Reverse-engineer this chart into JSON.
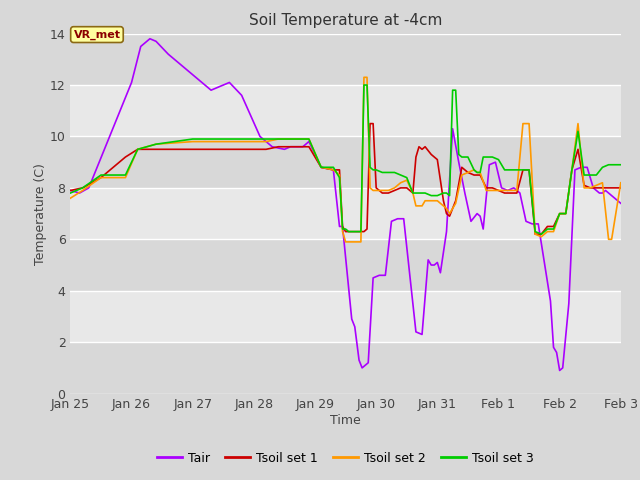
{
  "title": "Soil Temperature at -4cm",
  "xlabel": "Time",
  "ylabel": "Temperature (C)",
  "ylim": [
    0,
    14
  ],
  "yticks": [
    0,
    2,
    4,
    6,
    8,
    10,
    12,
    14
  ],
  "background_color": "#e8e8e8",
  "plot_bg_color": "#e0e0e0",
  "grid_color": "#f5f5f5",
  "annotation_label": "VR_met",
  "annotation_box_color": "#ffffa0",
  "annotation_border_color": "#8b6914",
  "series_order": [
    "Tair",
    "Tsoil set 1",
    "Tsoil set 2",
    "Tsoil set 3"
  ],
  "series": {
    "Tair": {
      "color": "#aa00ff",
      "linewidth": 1.2,
      "points": [
        [
          0.0,
          7.9
        ],
        [
          0.15,
          7.8
        ],
        [
          0.3,
          8.0
        ],
        [
          1.0,
          12.1
        ],
        [
          1.15,
          13.5
        ],
        [
          1.3,
          13.8
        ],
        [
          1.4,
          13.7
        ],
        [
          1.6,
          13.2
        ],
        [
          1.8,
          12.8
        ],
        [
          2.1,
          12.2
        ],
        [
          2.3,
          11.8
        ],
        [
          2.6,
          12.1
        ],
        [
          2.8,
          11.6
        ],
        [
          3.1,
          10.0
        ],
        [
          3.3,
          9.6
        ],
        [
          3.5,
          9.5
        ],
        [
          3.6,
          9.6
        ],
        [
          3.8,
          9.6
        ],
        [
          3.9,
          9.8
        ],
        [
          4.1,
          8.8
        ],
        [
          4.3,
          8.7
        ],
        [
          4.4,
          6.5
        ],
        [
          4.45,
          6.5
        ],
        [
          4.6,
          2.9
        ],
        [
          4.65,
          2.6
        ],
        [
          4.72,
          1.3
        ],
        [
          4.77,
          1.0
        ],
        [
          4.82,
          1.1
        ],
        [
          4.87,
          1.2
        ],
        [
          4.95,
          4.5
        ],
        [
          5.05,
          4.6
        ],
        [
          5.15,
          4.6
        ],
        [
          5.25,
          6.7
        ],
        [
          5.35,
          6.8
        ],
        [
          5.45,
          6.8
        ],
        [
          5.55,
          4.6
        ],
        [
          5.65,
          2.4
        ],
        [
          5.75,
          2.3
        ],
        [
          5.85,
          5.2
        ],
        [
          5.9,
          5.0
        ],
        [
          5.95,
          5.0
        ],
        [
          6.0,
          5.1
        ],
        [
          6.05,
          4.7
        ],
        [
          6.15,
          6.3
        ],
        [
          6.25,
          10.3
        ],
        [
          6.35,
          9.0
        ],
        [
          6.45,
          7.8
        ],
        [
          6.55,
          6.7
        ],
        [
          6.65,
          7.0
        ],
        [
          6.7,
          6.9
        ],
        [
          6.75,
          6.4
        ],
        [
          6.85,
          8.9
        ],
        [
          6.95,
          9.0
        ],
        [
          7.05,
          8.0
        ],
        [
          7.15,
          7.9
        ],
        [
          7.25,
          8.0
        ],
        [
          7.35,
          7.8
        ],
        [
          7.45,
          6.7
        ],
        [
          7.55,
          6.6
        ],
        [
          7.65,
          6.6
        ],
        [
          7.85,
          3.6
        ],
        [
          7.9,
          1.8
        ],
        [
          7.95,
          1.6
        ],
        [
          8.0,
          0.9
        ],
        [
          8.05,
          1.0
        ],
        [
          8.15,
          3.5
        ],
        [
          8.25,
          8.7
        ],
        [
          8.35,
          8.8
        ],
        [
          8.45,
          8.8
        ],
        [
          8.55,
          8.0
        ],
        [
          8.65,
          7.8
        ],
        [
          8.7,
          7.8
        ],
        [
          8.75,
          7.9
        ],
        [
          9.0,
          7.4
        ]
      ]
    },
    "Tsoil set 1": {
      "color": "#cc0000",
      "linewidth": 1.2,
      "points": [
        [
          0.0,
          7.9
        ],
        [
          0.2,
          8.0
        ],
        [
          0.5,
          8.4
        ],
        [
          0.9,
          9.2
        ],
        [
          1.1,
          9.5
        ],
        [
          1.4,
          9.5
        ],
        [
          2.0,
          9.5
        ],
        [
          2.5,
          9.5
        ],
        [
          3.0,
          9.5
        ],
        [
          3.2,
          9.5
        ],
        [
          3.4,
          9.6
        ],
        [
          3.6,
          9.6
        ],
        [
          3.8,
          9.6
        ],
        [
          3.9,
          9.6
        ],
        [
          4.1,
          8.8
        ],
        [
          4.3,
          8.7
        ],
        [
          4.4,
          8.7
        ],
        [
          4.45,
          6.5
        ],
        [
          4.5,
          6.3
        ],
        [
          4.55,
          6.3
        ],
        [
          4.6,
          6.3
        ],
        [
          4.7,
          6.3
        ],
        [
          4.75,
          6.3
        ],
        [
          4.8,
          6.3
        ],
        [
          4.85,
          6.4
        ],
        [
          4.9,
          10.5
        ],
        [
          4.95,
          10.5
        ],
        [
          5.0,
          8.0
        ],
        [
          5.1,
          7.8
        ],
        [
          5.2,
          7.8
        ],
        [
          5.3,
          7.9
        ],
        [
          5.4,
          8.0
        ],
        [
          5.5,
          8.0
        ],
        [
          5.6,
          7.8
        ],
        [
          5.65,
          9.2
        ],
        [
          5.7,
          9.6
        ],
        [
          5.75,
          9.5
        ],
        [
          5.8,
          9.6
        ],
        [
          5.9,
          9.3
        ],
        [
          6.0,
          9.1
        ],
        [
          6.1,
          7.5
        ],
        [
          6.15,
          7.0
        ],
        [
          6.2,
          6.9
        ],
        [
          6.25,
          7.2
        ],
        [
          6.3,
          7.5
        ],
        [
          6.4,
          8.8
        ],
        [
          6.5,
          8.6
        ],
        [
          6.6,
          8.5
        ],
        [
          6.65,
          8.5
        ],
        [
          6.7,
          8.5
        ],
        [
          6.8,
          8.0
        ],
        [
          6.9,
          8.0
        ],
        [
          7.0,
          7.9
        ],
        [
          7.1,
          7.8
        ],
        [
          7.2,
          7.8
        ],
        [
          7.3,
          7.8
        ],
        [
          7.4,
          8.7
        ],
        [
          7.5,
          8.7
        ],
        [
          7.6,
          6.2
        ],
        [
          7.7,
          6.2
        ],
        [
          7.8,
          6.5
        ],
        [
          7.9,
          6.5
        ],
        [
          8.0,
          7.0
        ],
        [
          8.1,
          7.0
        ],
        [
          8.2,
          8.7
        ],
        [
          8.3,
          9.5
        ],
        [
          8.4,
          8.1
        ],
        [
          8.5,
          8.0
        ],
        [
          8.6,
          8.0
        ],
        [
          8.7,
          8.0
        ],
        [
          8.8,
          8.0
        ],
        [
          9.0,
          8.0
        ]
      ]
    },
    "Tsoil set 2": {
      "color": "#ff9900",
      "linewidth": 1.2,
      "points": [
        [
          0.0,
          7.6
        ],
        [
          0.2,
          7.9
        ],
        [
          0.5,
          8.4
        ],
        [
          0.9,
          8.4
        ],
        [
          1.1,
          9.5
        ],
        [
          1.4,
          9.7
        ],
        [
          2.0,
          9.8
        ],
        [
          2.5,
          9.8
        ],
        [
          3.0,
          9.8
        ],
        [
          3.2,
          9.8
        ],
        [
          3.4,
          9.9
        ],
        [
          3.6,
          9.9
        ],
        [
          3.8,
          9.9
        ],
        [
          3.9,
          9.9
        ],
        [
          4.1,
          8.8
        ],
        [
          4.3,
          8.7
        ],
        [
          4.4,
          8.5
        ],
        [
          4.45,
          6.3
        ],
        [
          4.5,
          5.9
        ],
        [
          4.55,
          5.9
        ],
        [
          4.6,
          5.9
        ],
        [
          4.7,
          5.9
        ],
        [
          4.75,
          5.9
        ],
        [
          4.8,
          12.3
        ],
        [
          4.85,
          12.3
        ],
        [
          4.9,
          8.0
        ],
        [
          4.95,
          7.9
        ],
        [
          5.0,
          7.9
        ],
        [
          5.1,
          7.9
        ],
        [
          5.2,
          7.9
        ],
        [
          5.3,
          8.0
        ],
        [
          5.4,
          8.2
        ],
        [
          5.5,
          8.3
        ],
        [
          5.6,
          7.8
        ],
        [
          5.65,
          7.3
        ],
        [
          5.7,
          7.3
        ],
        [
          5.75,
          7.3
        ],
        [
          5.8,
          7.5
        ],
        [
          5.9,
          7.5
        ],
        [
          6.0,
          7.5
        ],
        [
          6.1,
          7.3
        ],
        [
          6.15,
          7.2
        ],
        [
          6.2,
          7.0
        ],
        [
          6.25,
          7.2
        ],
        [
          6.3,
          7.4
        ],
        [
          6.4,
          8.5
        ],
        [
          6.5,
          8.6
        ],
        [
          6.6,
          8.7
        ],
        [
          6.65,
          8.6
        ],
        [
          6.7,
          8.6
        ],
        [
          6.8,
          7.9
        ],
        [
          6.9,
          7.9
        ],
        [
          7.0,
          7.9
        ],
        [
          7.1,
          7.9
        ],
        [
          7.2,
          7.9
        ],
        [
          7.3,
          7.9
        ],
        [
          7.4,
          10.5
        ],
        [
          7.5,
          10.5
        ],
        [
          7.6,
          6.2
        ],
        [
          7.7,
          6.1
        ],
        [
          7.8,
          6.3
        ],
        [
          7.9,
          6.3
        ],
        [
          8.0,
          7.0
        ],
        [
          8.1,
          7.0
        ],
        [
          8.2,
          8.7
        ],
        [
          8.3,
          10.5
        ],
        [
          8.4,
          8.0
        ],
        [
          8.5,
          8.0
        ],
        [
          8.6,
          8.1
        ],
        [
          8.7,
          8.2
        ],
        [
          8.8,
          6.0
        ],
        [
          8.85,
          6.0
        ],
        [
          9.0,
          8.2
        ]
      ]
    },
    "Tsoil set 3": {
      "color": "#00cc00",
      "linewidth": 1.2,
      "points": [
        [
          0.0,
          7.8
        ],
        [
          0.2,
          8.0
        ],
        [
          0.5,
          8.5
        ],
        [
          0.9,
          8.5
        ],
        [
          1.1,
          9.5
        ],
        [
          1.4,
          9.7
        ],
        [
          2.0,
          9.9
        ],
        [
          2.5,
          9.9
        ],
        [
          3.0,
          9.9
        ],
        [
          3.2,
          9.9
        ],
        [
          3.4,
          9.9
        ],
        [
          3.6,
          9.9
        ],
        [
          3.8,
          9.9
        ],
        [
          3.9,
          9.9
        ],
        [
          4.1,
          8.8
        ],
        [
          4.3,
          8.8
        ],
        [
          4.4,
          8.4
        ],
        [
          4.45,
          6.4
        ],
        [
          4.5,
          6.4
        ],
        [
          4.55,
          6.3
        ],
        [
          4.6,
          6.3
        ],
        [
          4.7,
          6.3
        ],
        [
          4.75,
          6.3
        ],
        [
          4.8,
          12.0
        ],
        [
          4.85,
          12.0
        ],
        [
          4.9,
          8.8
        ],
        [
          4.95,
          8.7
        ],
        [
          5.0,
          8.7
        ],
        [
          5.1,
          8.6
        ],
        [
          5.2,
          8.6
        ],
        [
          5.3,
          8.6
        ],
        [
          5.4,
          8.5
        ],
        [
          5.5,
          8.4
        ],
        [
          5.6,
          7.8
        ],
        [
          5.65,
          7.8
        ],
        [
          5.7,
          7.8
        ],
        [
          5.75,
          7.8
        ],
        [
          5.8,
          7.8
        ],
        [
          5.9,
          7.7
        ],
        [
          6.0,
          7.7
        ],
        [
          6.1,
          7.8
        ],
        [
          6.15,
          7.8
        ],
        [
          6.2,
          7.7
        ],
        [
          6.25,
          11.8
        ],
        [
          6.3,
          11.8
        ],
        [
          6.35,
          9.3
        ],
        [
          6.4,
          9.2
        ],
        [
          6.45,
          9.2
        ],
        [
          6.5,
          9.2
        ],
        [
          6.6,
          8.7
        ],
        [
          6.65,
          8.6
        ],
        [
          6.7,
          8.6
        ],
        [
          6.75,
          9.2
        ],
        [
          6.8,
          9.2
        ],
        [
          6.9,
          9.2
        ],
        [
          7.0,
          9.1
        ],
        [
          7.1,
          8.7
        ],
        [
          7.2,
          8.7
        ],
        [
          7.3,
          8.7
        ],
        [
          7.4,
          8.7
        ],
        [
          7.5,
          8.7
        ],
        [
          7.6,
          6.3
        ],
        [
          7.7,
          6.2
        ],
        [
          7.8,
          6.4
        ],
        [
          7.9,
          6.4
        ],
        [
          8.0,
          7.0
        ],
        [
          8.1,
          7.0
        ],
        [
          8.2,
          8.7
        ],
        [
          8.3,
          10.2
        ],
        [
          8.4,
          8.5
        ],
        [
          8.5,
          8.5
        ],
        [
          8.6,
          8.5
        ],
        [
          8.7,
          8.8
        ],
        [
          8.8,
          8.9
        ],
        [
          9.0,
          8.9
        ]
      ]
    }
  },
  "x_tick_labels": [
    "Jan 25",
    "Jan 26",
    "Jan 27",
    "Jan 28",
    "Jan 29",
    "Jan 30",
    "Jan 31",
    "Feb 1",
    "Feb 2",
    "Feb 3"
  ],
  "x_tick_positions": [
    0,
    1,
    2,
    3,
    4,
    5,
    6,
    7,
    8,
    9
  ],
  "legend": [
    {
      "label": "Tair",
      "color": "#aa00ff"
    },
    {
      "label": "Tsoil set 1",
      "color": "#cc0000"
    },
    {
      "label": "Tsoil set 2",
      "color": "#ff9900"
    },
    {
      "label": "Tsoil set 3",
      "color": "#00cc00"
    }
  ]
}
